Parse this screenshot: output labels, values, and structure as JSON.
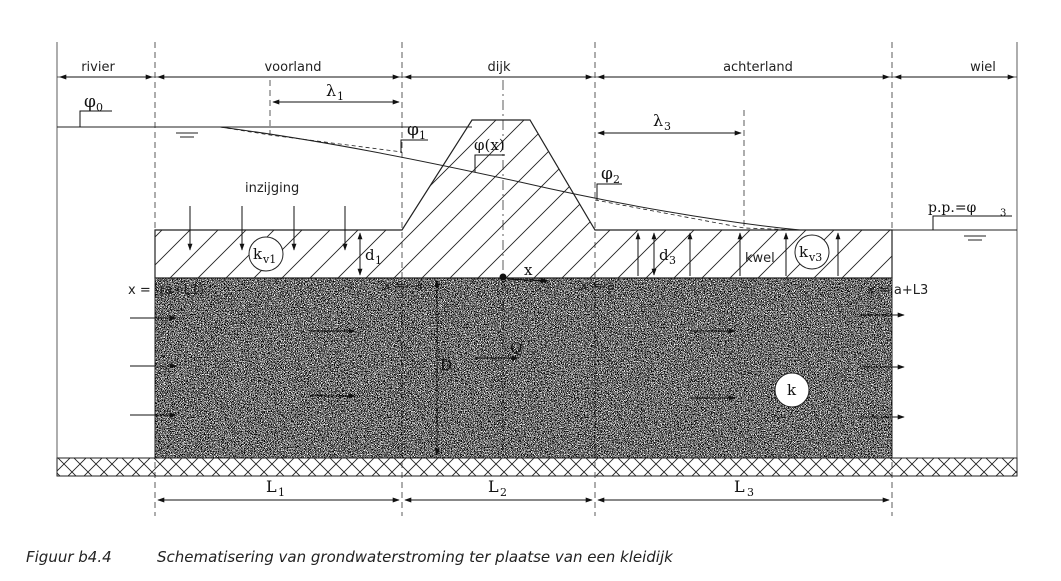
{
  "zones": {
    "rivier": "rivier",
    "voorland": "voorland",
    "dijk": "dijk",
    "achterland": "achterland",
    "wiel": "wiel"
  },
  "labels": {
    "phi0": "φ",
    "phi0_sub": "0",
    "phi1": "φ",
    "phi1_sub": "1",
    "phi2": "φ",
    "phi2_sub": "2",
    "phix": "φ(x)",
    "pp": "p.p.=φ",
    "pp_sub": "3",
    "lambda1": "λ",
    "lambda1_sub": "1",
    "lambda3": "λ",
    "lambda3_sub": "3",
    "inzijging": "inzijging",
    "kwel": "kwel",
    "kv1": "k",
    "kv1_sub": "v1",
    "kv3": "k",
    "kv3_sub": "v3",
    "k": "k",
    "d1": "d",
    "d1_sub": "1",
    "d3": "d",
    "d3_sub": "3",
    "D": "D",
    "Q": "Q",
    "x": "x",
    "x_left": "x = -(a+L1)",
    "x_minus_a": "x = -a",
    "x_plus_a": "x = a",
    "x_right": "x = a+L3",
    "L1": "L",
    "L1_sub": "1",
    "L2": "L",
    "L2_sub": "2",
    "L3": "L",
    "L3_sub": "3"
  },
  "caption": {
    "number": "Figuur b4.4",
    "text": "Schematisering van grondwaterstroming ter plaatse van een kleidijk"
  }
}
